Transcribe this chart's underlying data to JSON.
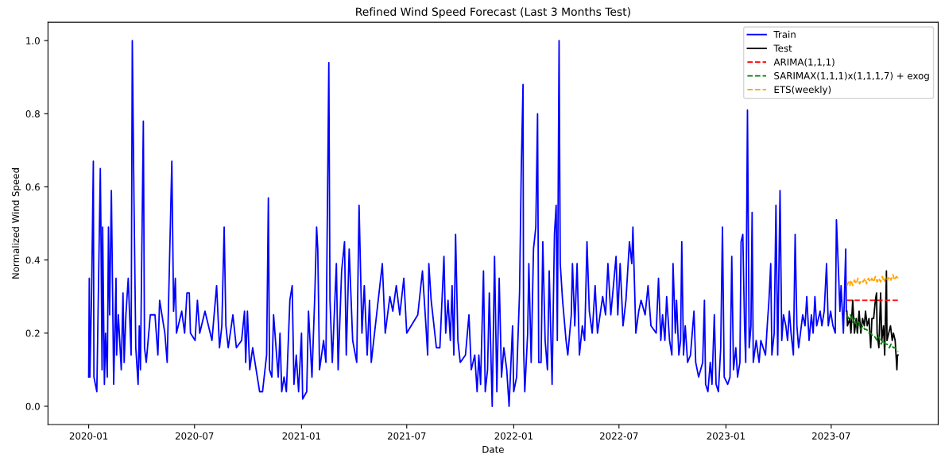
{
  "chart_data": {
    "type": "line",
    "title": "Refined Wind Speed Forecast (Last 3 Months Test)",
    "xlabel": "Date",
    "ylabel": "Normalized Wind Speed",
    "xlim": [
      "2019-10-23",
      "2024-01-01"
    ],
    "xticks": [
      "2020-01",
      "2020-07",
      "2021-01",
      "2021-07",
      "2022-01",
      "2022-07",
      "2023-01",
      "2023-07"
    ],
    "ylim": [
      -0.05,
      1.05
    ],
    "yticks": [
      {
        "value": 0.0,
        "label": "0.0"
      },
      {
        "value": 0.2,
        "label": "0.2"
      },
      {
        "value": 0.4,
        "label": "0.4"
      },
      {
        "value": 0.6,
        "label": "0.6"
      },
      {
        "value": 0.8,
        "label": "0.8"
      },
      {
        "value": 1.0,
        "label": "1.0"
      }
    ],
    "grid": false,
    "legend": "top right",
    "series": [
      {
        "name": "Train",
        "color": "#0000ff",
        "line_style": "solid",
        "x": [
          "2020-01-01",
          "2020-01-02",
          "2020-01-03",
          "2020-01-06",
          "2020-01-09",
          "2020-01-10",
          "2020-01-15",
          "2020-01-21",
          "2020-01-22",
          "2020-01-24",
          "2020-01-25",
          "2020-01-28",
          "2020-01-30",
          "2020-02-02",
          "2020-02-04",
          "2020-02-06",
          "2020-02-09",
          "2020-02-13",
          "2020-02-17",
          "2020-02-18",
          "2020-02-21",
          "2020-02-26",
          "2020-02-29",
          "2020-03-02",
          "2020-03-05",
          "2020-03-09",
          "2020-03-14",
          "2020-03-16",
          "2020-03-19",
          "2020-03-22",
          "2020-03-26",
          "2020-03-28",
          "2020-03-30",
          "2020-04-04",
          "2020-04-06",
          "2020-04-09",
          "2020-04-16",
          "2020-04-24",
          "2020-04-29",
          "2020-05-02",
          "2020-05-11",
          "2020-05-15",
          "2020-05-23",
          "2020-05-26",
          "2020-05-29",
          "2020-05-31",
          "2020-06-09",
          "2020-06-14",
          "2020-06-18",
          "2020-06-22",
          "2020-06-24",
          "2020-07-02",
          "2020-07-06",
          "2020-07-10",
          "2020-07-19",
          "2020-07-31",
          "2020-08-08",
          "2020-08-13",
          "2020-08-17",
          "2020-08-21",
          "2020-08-24",
          "2020-08-28",
          "2020-09-05",
          "2020-09-11",
          "2020-09-20",
          "2020-09-25",
          "2020-09-27",
          "2020-09-30",
          "2020-10-04",
          "2020-10-09",
          "2020-10-21",
          "2020-10-26",
          "2020-11-02",
          "2020-11-05",
          "2020-11-07",
          "2020-11-11",
          "2020-11-14",
          "2020-11-22",
          "2020-11-25",
          "2020-11-28",
          "2020-12-02",
          "2020-12-06",
          "2020-12-12",
          "2020-12-16",
          "2020-12-19",
          "2020-12-23",
          "2020-12-27",
          "2021-01-01",
          "2021-01-03",
          "2021-01-10",
          "2021-01-13",
          "2021-01-19",
          "2021-01-24",
          "2021-01-27",
          "2021-01-29",
          "2021-02-01",
          "2021-02-08",
          "2021-02-12",
          "2021-02-17",
          "2021-02-19",
          "2021-02-23",
          "2021-03-02",
          "2021-03-05",
          "2021-03-11",
          "2021-03-16",
          "2021-03-19",
          "2021-03-24",
          "2021-03-30",
          "2021-04-06",
          "2021-04-10",
          "2021-04-15",
          "2021-04-19",
          "2021-04-24",
          "2021-04-28",
          "2021-05-01",
          "2021-05-08",
          "2021-05-20",
          "2021-05-25",
          "2021-06-02",
          "2021-06-07",
          "2021-06-13",
          "2021-06-19",
          "2021-06-26",
          "2021-07-01",
          "2021-07-20",
          "2021-07-28",
          "2021-08-03",
          "2021-08-06",
          "2021-08-08",
          "2021-08-12",
          "2021-08-21",
          "2021-08-27",
          "2021-09-03",
          "2021-09-06",
          "2021-09-10",
          "2021-09-14",
          "2021-09-17",
          "2021-09-20",
          "2021-09-23",
          "2021-09-27",
          "2021-10-01",
          "2021-10-10",
          "2021-10-16",
          "2021-10-20",
          "2021-10-26",
          "2021-10-30",
          "2021-11-02",
          "2021-11-05",
          "2021-11-10",
          "2021-11-13",
          "2021-11-17",
          "2021-11-20",
          "2021-11-25",
          "2021-11-29",
          "2021-12-03",
          "2021-12-07",
          "2021-12-11",
          "2021-12-15",
          "2021-12-20",
          "2021-12-24",
          "2021-12-30",
          "2022-01-01",
          "2022-01-06",
          "2022-01-11",
          "2022-01-14",
          "2022-01-17",
          "2022-01-18",
          "2022-01-20",
          "2022-01-25",
          "2022-01-27",
          "2022-01-31",
          "2022-02-04",
          "2022-02-08",
          "2022-02-11",
          "2022-02-13",
          "2022-02-17",
          "2022-02-20",
          "2022-02-24",
          "2022-02-28",
          "2022-03-03",
          "2022-03-08",
          "2022-03-12",
          "2022-03-15",
          "2022-03-17",
          "2022-03-20",
          "2022-03-22",
          "2022-03-26",
          "2022-04-01",
          "2022-04-04",
          "2022-04-10",
          "2022-04-12",
          "2022-04-16",
          "2022-04-20",
          "2022-04-24",
          "2022-04-29",
          "2022-05-03",
          "2022-05-07",
          "2022-05-11",
          "2022-05-16",
          "2022-05-21",
          "2022-05-25",
          "2022-06-03",
          "2022-06-08",
          "2022-06-12",
          "2022-06-17",
          "2022-06-26",
          "2022-06-29",
          "2022-07-03",
          "2022-07-08",
          "2022-07-13",
          "2022-07-19",
          "2022-07-23",
          "2022-07-25",
          "2022-07-30",
          "2022-08-04",
          "2022-08-08",
          "2022-08-15",
          "2022-08-20",
          "2022-08-25",
          "2022-09-03",
          "2022-09-07",
          "2022-09-11",
          "2022-09-14",
          "2022-09-18",
          "2022-09-21",
          "2022-09-26",
          "2022-09-30",
          "2022-10-02",
          "2022-10-06",
          "2022-10-08",
          "2022-10-12",
          "2022-10-15",
          "2022-10-17",
          "2022-10-20",
          "2022-10-23",
          "2022-10-27",
          "2022-11-01",
          "2022-11-07",
          "2022-11-10",
          "2022-11-15",
          "2022-11-22",
          "2022-11-25",
          "2022-11-27",
          "2022-12-01",
          "2022-12-05",
          "2022-12-08",
          "2022-12-12",
          "2022-12-15",
          "2022-12-19",
          "2022-12-23",
          "2022-12-26",
          "2022-12-29",
          "2023-01-04",
          "2023-01-08",
          "2023-01-11",
          "2023-01-14",
          "2023-01-18",
          "2023-01-21",
          "2023-01-25",
          "2023-01-27",
          "2023-01-30",
          "2023-02-02",
          "2023-02-04",
          "2023-02-07",
          "2023-02-10",
          "2023-02-13",
          "2023-02-15",
          "2023-02-17",
          "2023-02-22",
          "2023-02-27",
          "2023-03-02",
          "2023-03-10",
          "2023-03-13",
          "2023-03-16",
          "2023-03-19",
          "2023-03-21",
          "2023-03-25",
          "2023-03-28",
          "2023-03-31",
          "2023-04-04",
          "2023-04-07",
          "2023-04-10",
          "2023-04-14",
          "2023-04-17",
          "2023-04-20",
          "2023-04-23",
          "2023-04-27",
          "2023-04-30",
          "2023-05-03",
          "2023-05-06",
          "2023-05-13",
          "2023-05-17",
          "2023-05-20",
          "2023-05-24",
          "2023-05-28",
          "2023-05-31",
          "2023-06-03",
          "2023-06-06",
          "2023-06-12",
          "2023-06-15",
          "2023-06-19",
          "2023-06-23",
          "2023-06-26",
          "2023-06-30",
          "2023-07-04",
          "2023-07-08",
          "2023-07-10",
          "2023-07-14",
          "2023-07-16",
          "2023-07-18",
          "2023-07-22",
          "2023-07-26",
          "2023-07-27"
        ],
        "values": [
          0.08,
          0.35,
          0.08,
          0.31,
          0.67,
          0.08,
          0.04,
          0.65,
          0.49,
          0.1,
          0.49,
          0.06,
          0.2,
          0.08,
          0.49,
          0.25,
          0.59,
          0.06,
          0.35,
          0.14,
          0.25,
          0.1,
          0.31,
          0.12,
          0.25,
          0.35,
          0.14,
          1.0,
          0.55,
          0.16,
          0.06,
          0.22,
          0.1,
          0.78,
          0.16,
          0.12,
          0.25,
          0.25,
          0.14,
          0.29,
          0.2,
          0.12,
          0.67,
          0.26,
          0.35,
          0.2,
          0.26,
          0.2,
          0.31,
          0.31,
          0.2,
          0.18,
          0.29,
          0.2,
          0.26,
          0.18,
          0.33,
          0.16,
          0.22,
          0.49,
          0.22,
          0.16,
          0.25,
          0.16,
          0.18,
          0.26,
          0.12,
          0.26,
          0.1,
          0.16,
          0.04,
          0.04,
          0.14,
          0.57,
          0.1,
          0.08,
          0.25,
          0.08,
          0.2,
          0.04,
          0.08,
          0.04,
          0.29,
          0.33,
          0.06,
          0.14,
          0.04,
          0.2,
          0.02,
          0.04,
          0.26,
          0.08,
          0.31,
          0.49,
          0.43,
          0.1,
          0.18,
          0.12,
          0.94,
          0.29,
          0.12,
          0.39,
          0.1,
          0.37,
          0.45,
          0.14,
          0.43,
          0.18,
          0.12,
          0.55,
          0.2,
          0.33,
          0.14,
          0.29,
          0.12,
          0.22,
          0.39,
          0.2,
          0.3,
          0.26,
          0.33,
          0.25,
          0.35,
          0.2,
          0.25,
          0.37,
          0.22,
          0.14,
          0.39,
          0.29,
          0.16,
          0.16,
          0.41,
          0.2,
          0.29,
          0.18,
          0.33,
          0.14,
          0.47,
          0.18,
          0.12,
          0.14,
          0.25,
          0.1,
          0.14,
          0.04,
          0.14,
          0.06,
          0.37,
          0.04,
          0.1,
          0.31,
          0.0,
          0.41,
          0.04,
          0.35,
          0.08,
          0.16,
          0.1,
          0.0,
          0.22,
          0.04,
          0.08,
          0.31,
          0.65,
          0.88,
          0.16,
          0.04,
          0.2,
          0.39,
          0.12,
          0.43,
          0.49,
          0.8,
          0.12,
          0.12,
          0.45,
          0.18,
          0.1,
          0.37,
          0.06,
          0.47,
          0.55,
          0.18,
          1.0,
          0.39,
          0.29,
          0.18,
          0.14,
          0.25,
          0.39,
          0.22,
          0.39,
          0.14,
          0.22,
          0.18,
          0.45,
          0.26,
          0.2,
          0.33,
          0.2,
          0.3,
          0.25,
          0.39,
          0.25,
          0.41,
          0.25,
          0.39,
          0.22,
          0.29,
          0.45,
          0.39,
          0.49,
          0.2,
          0.26,
          0.29,
          0.25,
          0.33,
          0.22,
          0.2,
          0.35,
          0.18,
          0.25,
          0.18,
          0.3,
          0.18,
          0.14,
          0.39,
          0.2,
          0.29,
          0.14,
          0.18,
          0.45,
          0.14,
          0.22,
          0.12,
          0.14,
          0.26,
          0.12,
          0.08,
          0.12,
          0.29,
          0.06,
          0.04,
          0.12,
          0.06,
          0.25,
          0.06,
          0.04,
          0.16,
          0.49,
          0.08,
          0.06,
          0.08,
          0.41,
          0.1,
          0.16,
          0.08,
          0.12,
          0.45,
          0.47,
          0.22,
          0.12,
          0.81,
          0.16,
          0.22,
          0.53,
          0.12,
          0.18,
          0.12,
          0.18,
          0.14,
          0.22,
          0.29,
          0.39,
          0.14,
          0.2,
          0.55,
          0.14,
          0.59,
          0.18,
          0.25,
          0.22,
          0.18,
          0.26,
          0.2,
          0.14,
          0.47,
          0.22,
          0.16,
          0.25,
          0.22,
          0.3,
          0.18,
          0.25,
          0.2,
          0.3,
          0.22,
          0.26,
          0.22,
          0.26,
          0.39,
          0.22,
          0.26,
          0.22,
          0.2,
          0.51,
          0.35,
          0.26,
          0.33,
          0.2,
          0.43,
          0.26
        ]
      },
      {
        "name": "Test",
        "color": "#000000",
        "line_style": "solid",
        "x": [
          "2023-07-28",
          "2023-07-29",
          "2023-08-02",
          "2023-08-04",
          "2023-08-07",
          "2023-08-10",
          "2023-08-13",
          "2023-08-15",
          "2023-08-18",
          "2023-08-21",
          "2023-08-24",
          "2023-08-27",
          "2023-08-29",
          "2023-09-01",
          "2023-09-04",
          "2023-09-07",
          "2023-09-09",
          "2023-09-12",
          "2023-09-15",
          "2023-09-17",
          "2023-09-18",
          "2023-09-21",
          "2023-09-24",
          "2023-09-26",
          "2023-09-29",
          "2023-10-01",
          "2023-10-04",
          "2023-10-05",
          "2023-10-08",
          "2023-10-11",
          "2023-10-14",
          "2023-10-16",
          "2023-10-19",
          "2023-10-22",
          "2023-10-23",
          "2023-10-24"
        ],
        "values": [
          0.26,
          0.22,
          0.24,
          0.2,
          0.29,
          0.2,
          0.24,
          0.2,
          0.26,
          0.2,
          0.24,
          0.22,
          0.26,
          0.22,
          0.24,
          0.16,
          0.24,
          0.24,
          0.29,
          0.31,
          0.2,
          0.16,
          0.31,
          0.18,
          0.22,
          0.14,
          0.37,
          0.18,
          0.2,
          0.22,
          0.18,
          0.2,
          0.18,
          0.1,
          0.14,
          0.14
        ]
      },
      {
        "name": "ARIMA(1,1,1)",
        "color": "#ff0000",
        "line_style": "dashed",
        "x": [
          "2023-07-28",
          "2023-10-24"
        ],
        "values": [
          0.29,
          0.29
        ]
      },
      {
        "name": "SARIMAX(1,1,1)x(1,1,1,7) + exog",
        "color": "#008000",
        "line_style": "dashed",
        "x": [
          "2023-07-28",
          "2023-07-31",
          "2023-08-03",
          "2023-08-07",
          "2023-08-10",
          "2023-08-14",
          "2023-08-17",
          "2023-08-21",
          "2023-08-24",
          "2023-08-28",
          "2023-08-31",
          "2023-09-04",
          "2023-09-07",
          "2023-09-11",
          "2023-09-14",
          "2023-09-18",
          "2023-09-21",
          "2023-09-25",
          "2023-09-28",
          "2023-10-02",
          "2023-10-05",
          "2023-10-09",
          "2023-10-12",
          "2023-10-16",
          "2023-10-19",
          "2023-10-24"
        ],
        "values": [
          0.25,
          0.24,
          0.25,
          0.23,
          0.24,
          0.22,
          0.23,
          0.21,
          0.22,
          0.21,
          0.21,
          0.2,
          0.2,
          0.19,
          0.19,
          0.18,
          0.19,
          0.17,
          0.18,
          0.17,
          0.17,
          0.16,
          0.17,
          0.16,
          0.16,
          0.15
        ]
      },
      {
        "name": "ETS(weekly)",
        "color": "#ffa500",
        "line_style": "dashed",
        "x": [
          "2023-07-28",
          "2023-07-31",
          "2023-08-02",
          "2023-08-04",
          "2023-08-07",
          "2023-08-10",
          "2023-08-13",
          "2023-08-16",
          "2023-08-19",
          "2023-08-22",
          "2023-08-25",
          "2023-08-28",
          "2023-08-31",
          "2023-09-03",
          "2023-09-06",
          "2023-09-09",
          "2023-09-12",
          "2023-09-15",
          "2023-09-18",
          "2023-09-21",
          "2023-09-24",
          "2023-09-27",
          "2023-09-30",
          "2023-10-03",
          "2023-10-06",
          "2023-10-09",
          "2023-10-12",
          "2023-10-15",
          "2023-10-18",
          "2023-10-21",
          "2023-10-24"
        ],
        "values": [
          0.33,
          0.34,
          0.33,
          0.345,
          0.33,
          0.345,
          0.335,
          0.35,
          0.335,
          0.345,
          0.34,
          0.35,
          0.335,
          0.35,
          0.34,
          0.35,
          0.34,
          0.355,
          0.34,
          0.35,
          0.34,
          0.355,
          0.34,
          0.355,
          0.345,
          0.355,
          0.345,
          0.36,
          0.345,
          0.355,
          0.35
        ]
      }
    ]
  }
}
